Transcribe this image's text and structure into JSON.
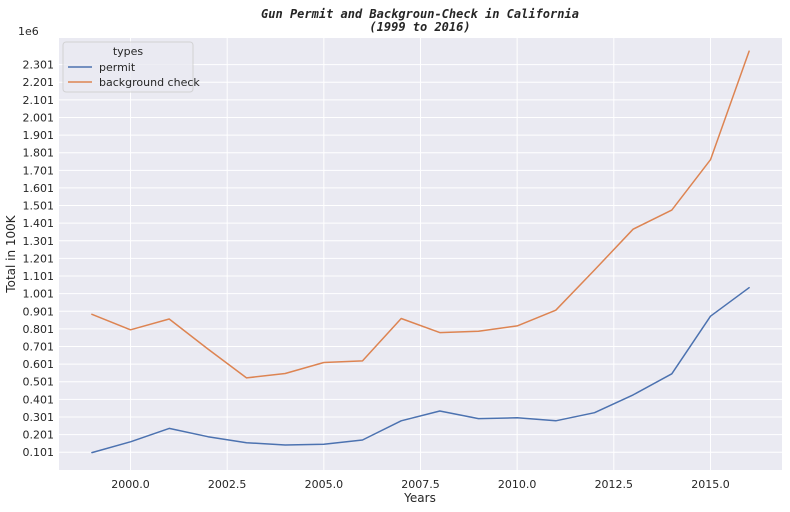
{
  "chart_data": {
    "type": "line",
    "title": "Gun Permit and Backgroun-Check in California",
    "subtitle": "(1999 to 2016)",
    "xlabel": "Years",
    "ylabel": "Total in 100K",
    "y_offset_label": "1e6",
    "legend_title": "types",
    "legend_position": "top-left",
    "grid": true,
    "xlim": [
      1998.15,
      2016.85
    ],
    "ylim": [
      0.0,
      2.452
    ],
    "x_ticks": [
      "2000.0",
      "2002.5",
      "2005.0",
      "2007.5",
      "2010.0",
      "2012.5",
      "2015.0"
    ],
    "x_tick_values": [
      2000.0,
      2002.5,
      2005.0,
      2007.5,
      2010.0,
      2012.5,
      2015.0
    ],
    "y_ticks": [
      "0.101",
      "0.201",
      "0.301",
      "0.401",
      "0.501",
      "0.601",
      "0.701",
      "0.801",
      "0.901",
      "1.001",
      "1.101",
      "1.201",
      "1.301",
      "1.401",
      "1.501",
      "1.601",
      "1.701",
      "1.801",
      "1.901",
      "2.001",
      "2.101",
      "2.201",
      "2.301"
    ],
    "y_tick_values": [
      0.101,
      0.201,
      0.301,
      0.401,
      0.501,
      0.601,
      0.701,
      0.801,
      0.901,
      1.001,
      1.101,
      1.201,
      1.301,
      1.401,
      1.501,
      1.601,
      1.701,
      1.801,
      1.901,
      2.001,
      2.101,
      2.201,
      2.301
    ],
    "x": [
      1999,
      2000,
      2001,
      2002,
      2003,
      2004,
      2005,
      2006,
      2007,
      2008,
      2009,
      2010,
      2011,
      2012,
      2013,
      2014,
      2015,
      2016
    ],
    "series": [
      {
        "name": "permit",
        "color": "#4c72b0",
        "values": [
          0.099,
          0.16,
          0.236,
          0.189,
          0.155,
          0.142,
          0.146,
          0.17,
          0.279,
          0.335,
          0.292,
          0.296,
          0.279,
          0.325,
          0.426,
          0.546,
          0.873,
          1.035
        ]
      },
      {
        "name": "background check",
        "color": "#dd8452",
        "values": [
          0.884,
          0.796,
          0.857,
          0.687,
          0.523,
          0.548,
          0.61,
          0.619,
          0.86,
          0.78,
          0.788,
          0.818,
          0.907,
          1.135,
          1.367,
          1.475,
          1.761,
          2.377
        ]
      }
    ]
  }
}
